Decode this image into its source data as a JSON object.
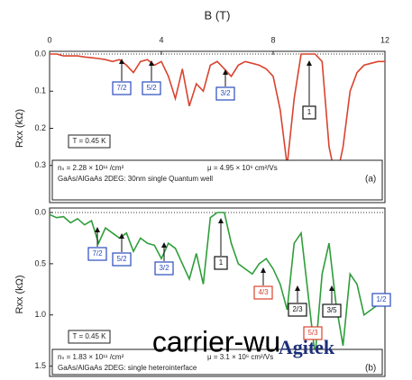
{
  "chart_data": [
    {
      "type": "line",
      "xlabel": "B (T)",
      "ylabel": "Rxx (kΩ)",
      "panel_label": "(a)",
      "temperature": "T = 0.45 K",
      "density": "nₛ = 2.28 × 10¹¹ /cm²",
      "mobility": "μ = 4.95 × 10⁶ cm²/Vs",
      "sample": "GaAs/AlGaAs 2DEG: 30nm single Quantum well",
      "xlim": [
        0,
        12
      ],
      "xticks": [
        0,
        4,
        8,
        12
      ],
      "ylim": [
        0,
        0.4
      ],
      "yticks": [
        {
          "value": 0,
          "label": "0.0"
        },
        {
          "value": 0.1,
          "label": "0.1"
        },
        {
          "value": 0.2,
          "label": "0.2"
        },
        {
          "value": 0.3,
          "label": "0.3"
        }
      ],
      "series": [
        {
          "color": "#d9432f",
          "x": [
            0,
            0.25,
            0.5,
            0.75,
            1,
            1.25,
            1.5,
            1.75,
            2,
            2.25,
            2.5,
            2.75,
            3,
            3.25,
            3.5,
            3.75,
            4,
            4.25,
            4.5,
            4.75,
            5,
            5.25,
            5.5,
            5.75,
            6,
            6.25,
            6.5,
            6.75,
            7,
            7.25,
            7.5,
            7.75,
            8,
            8.25,
            8.5,
            8.75,
            9,
            9.25,
            9.5,
            9.75,
            10,
            10.25,
            10.5,
            10.75,
            11,
            11.25,
            11.5,
            11.75,
            12
          ],
          "values": [
            0,
            0,
            0.005,
            0.005,
            0.005,
            0.008,
            0.01,
            0.012,
            0.015,
            0.02,
            0.015,
            0.03,
            0.05,
            0.02,
            0.015,
            0.03,
            0.02,
            0.06,
            0.12,
            0.04,
            0.14,
            0.08,
            0.1,
            0.03,
            0.02,
            0.04,
            0.06,
            0.03,
            0.02,
            0.025,
            0.03,
            0.04,
            0.06,
            0.15,
            0.3,
            0.12,
            0,
            0,
            0,
            0.02,
            0.25,
            0.34,
            0.25,
            0.1,
            0.05,
            0.03,
            0.025,
            0.02,
            0.02
          ]
        }
      ],
      "annotations": [
        {
          "text": "7/2",
          "color": "#2a4bbd"
        },
        {
          "text": "5/2",
          "color": "#2a4bbd"
        },
        {
          "text": "3/2",
          "color": "#2a4bbd"
        },
        {
          "text": "1",
          "color": "#111111"
        }
      ]
    },
    {
      "type": "line",
      "ylabel": "Rxx (kΩ)",
      "panel_label": "(b)",
      "temperature": "T = 0.45 K",
      "density": "nₛ = 1.83 × 10¹¹ /cm²",
      "mobility": "μ = 3.1 × 10⁶ cm²/Vs",
      "sample": "GaAs/AlGaAs 2DEG: single heterointerface",
      "xlim": [
        0,
        12
      ],
      "ylim": [
        0,
        1.6
      ],
      "yticks": [
        {
          "value": 0,
          "label": "0.0"
        },
        {
          "value": 0.5,
          "label": "0.5"
        },
        {
          "value": 1,
          "label": "1.0"
        },
        {
          "value": 1.5,
          "label": "1.5"
        }
      ],
      "series": [
        {
          "color": "#2e9e3a",
          "x": [
            0,
            0.25,
            0.5,
            0.75,
            1,
            1.25,
            1.5,
            1.75,
            2,
            2.25,
            2.5,
            2.75,
            3,
            3.25,
            3.5,
            3.75,
            4,
            4.25,
            4.5,
            4.75,
            5,
            5.25,
            5.5,
            5.75,
            6,
            6.25,
            6.5,
            6.75,
            7,
            7.25,
            7.5,
            7.75,
            8,
            8.25,
            8.5,
            8.75,
            9,
            9.25,
            9.5,
            9.75,
            10,
            10.25,
            10.5,
            10.75,
            11,
            11.25,
            11.5,
            11.75,
            12
          ],
          "values": [
            0.02,
            0.05,
            0.04,
            0.1,
            0.06,
            0.12,
            0.08,
            0.3,
            0.15,
            0.2,
            0.25,
            0.2,
            0.38,
            0.25,
            0.3,
            0.32,
            0.45,
            0.3,
            0.35,
            0.5,
            0.65,
            0.4,
            0.7,
            0.05,
            0,
            0,
            0.3,
            0.5,
            0.55,
            0.6,
            0.5,
            0.45,
            0.55,
            0.7,
            0.95,
            0.3,
            0.2,
            0.8,
            1.4,
            0.6,
            0.3,
            0.9,
            1.3,
            0.6,
            0.7,
            1,
            0.95,
            0.9,
            0.88
          ]
        }
      ],
      "annotations": [
        {
          "text": "7/2",
          "color": "#2a4bbd"
        },
        {
          "text": "5/2",
          "color": "#2a4bbd"
        },
        {
          "text": "3/2",
          "color": "#2a4bbd"
        },
        {
          "text": "1",
          "color": "#111111"
        },
        {
          "text": "4/3",
          "color": "#d9432f"
        },
        {
          "text": "2/3",
          "color": "#111111"
        },
        {
          "text": "5/3",
          "color": "#d9432f"
        },
        {
          "text": "3/5",
          "color": "#111111"
        },
        {
          "text": "1/2",
          "color": "#2a4bbd"
        }
      ]
    }
  ],
  "overlay_text": "carrier-wu",
  "watermark": "Agitek"
}
